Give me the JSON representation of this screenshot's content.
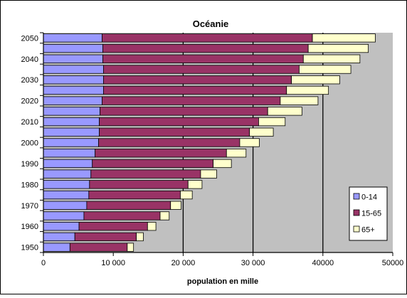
{
  "chart_data": {
    "type": "bar",
    "orientation": "horizontal",
    "stacked": true,
    "title": "Océanie",
    "xlabel": "population en mille",
    "ylabel": "",
    "xlim": [
      0,
      50000
    ],
    "x_ticks": [
      0,
      10000,
      20000,
      30000,
      40000,
      50000
    ],
    "x_tick_labels": [
      "0",
      "10 000",
      "20 000",
      "30 000",
      "40000",
      "50000"
    ],
    "y_tick_labels": [
      "1950",
      "1960",
      "1970",
      "1980",
      "1990",
      "2000",
      "2010",
      "2020",
      "2030",
      "2040",
      "2050"
    ],
    "categories": [
      "1950",
      "1955",
      "1960",
      "1965",
      "1970",
      "1975",
      "1980",
      "1985",
      "1990",
      "1995",
      "2000",
      "2005",
      "2010",
      "2015",
      "2020",
      "2025",
      "2030",
      "2035",
      "2040",
      "2045",
      "2050"
    ],
    "series": [
      {
        "name": "0-14",
        "color": "#9999ff",
        "values": [
          3800,
          4500,
          5100,
          5800,
          6200,
          6500,
          6600,
          6800,
          7000,
          7400,
          7900,
          8000,
          8000,
          8100,
          8400,
          8600,
          8600,
          8600,
          8500,
          8500,
          8400
        ]
      },
      {
        "name": "15-65",
        "color": "#993366",
        "values": [
          8200,
          8800,
          9800,
          10900,
          12000,
          13100,
          14100,
          15700,
          17300,
          18800,
          20200,
          21500,
          22800,
          24000,
          25500,
          26200,
          26900,
          28000,
          28700,
          29400,
          30100
        ]
      },
      {
        "name": "65+",
        "color": "#ffffcc",
        "values": [
          900,
          1000,
          1200,
          1300,
          1500,
          1700,
          2000,
          2300,
          2600,
          2800,
          2800,
          3400,
          3800,
          4900,
          5400,
          6000,
          6900,
          7400,
          8100,
          8600,
          9000
        ]
      }
    ],
    "legend": "right",
    "grid": "vertical lines at 20000, 30000, 40000 (drawn as black lines)",
    "plot_background": "#c0c0c0"
  }
}
